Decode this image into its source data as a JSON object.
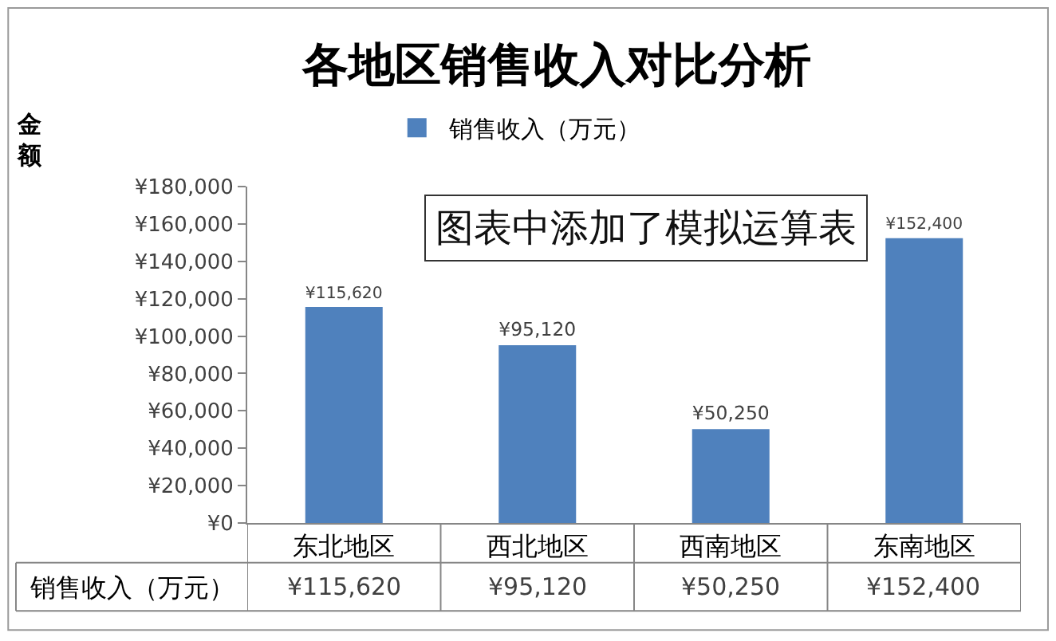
{
  "chart_data": {
    "type": "bar",
    "title": "各地区销售收入对比分析",
    "ylabel": "金额",
    "categories": [
      "东北地区",
      "西北地区",
      "西南地区",
      "东南地区"
    ],
    "series": [
      {
        "name": "销售收入（万元）",
        "color": "#4f81bd",
        "values": [
          115620,
          95120,
          50250,
          152400
        ],
        "value_labels": [
          "¥115,620",
          "¥95,120",
          "¥50,250",
          "¥152,400"
        ]
      }
    ],
    "ylim": [
      0,
      180000
    ],
    "yticks": [
      {
        "value": 0,
        "label": "¥0"
      },
      {
        "value": 20000,
        "label": "¥20,000"
      },
      {
        "value": 40000,
        "label": "¥40,000"
      },
      {
        "value": 60000,
        "label": "¥60,000"
      },
      {
        "value": 80000,
        "label": "¥80,000"
      },
      {
        "value": 100000,
        "label": "¥100,000"
      },
      {
        "value": 120000,
        "label": "¥120,000"
      },
      {
        "value": 140000,
        "label": "¥140,000"
      },
      {
        "value": 160000,
        "label": "¥160,000"
      },
      {
        "value": 180000,
        "label": "¥180,000"
      }
    ],
    "legend": "top",
    "grid": false,
    "data_labels": true,
    "annotations": [
      "图表中添加了模拟运算表"
    ]
  }
}
